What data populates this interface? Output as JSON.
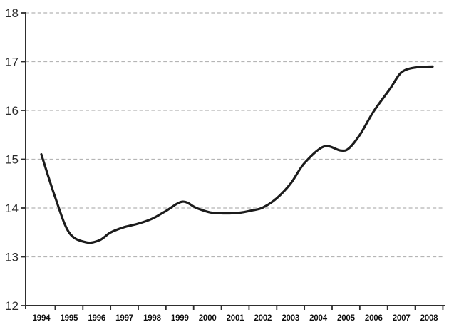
{
  "chart_data": {
    "type": "line",
    "title": "",
    "xlabel": "",
    "ylabel": "",
    "legend_position": "none",
    "grid": "horizontal-dashed",
    "xlim": [
      1993.45,
      2008.6
    ],
    "ylim": [
      12,
      18
    ],
    "x_categories": [
      "1994",
      "1995",
      "1996",
      "1997",
      "1998",
      "1999",
      "2000",
      "2001",
      "2002",
      "2003",
      "2004",
      "2005",
      "2006",
      "2007",
      "2008"
    ],
    "years": [
      1994,
      1995,
      1996,
      1997,
      1998,
      1999,
      2000,
      2001,
      2002,
      2003,
      2004,
      2005,
      2006,
      2007,
      2008
    ],
    "values": [
      15.1,
      13.5,
      13.3,
      13.6,
      13.8,
      14.1,
      13.9,
      13.9,
      14.0,
      14.5,
      15.25,
      15.2,
      16.0,
      16.8,
      16.9
    ],
    "y_tick_values": [
      18,
      17,
      16,
      15,
      14,
      13,
      12
    ],
    "y_tick_labels": [
      "18",
      "17",
      "16",
      "15",
      "14",
      "13",
      "12"
    ],
    "smooth_curve_points": [
      [
        1994.0,
        15.1
      ],
      [
        1994.5,
        14.22
      ],
      [
        1995.0,
        13.5
      ],
      [
        1995.6,
        13.3
      ],
      [
        1996.1,
        13.34
      ],
      [
        1996.5,
        13.5
      ],
      [
        1997.0,
        13.61
      ],
      [
        1997.5,
        13.68
      ],
      [
        1998.0,
        13.78
      ],
      [
        1998.5,
        13.94
      ],
      [
        1999.1,
        14.13
      ],
      [
        1999.6,
        14.0
      ],
      [
        2000.1,
        13.91
      ],
      [
        2000.6,
        13.89
      ],
      [
        2001.1,
        13.9
      ],
      [
        2001.6,
        13.95
      ],
      [
        2002.0,
        14.01
      ],
      [
        2002.5,
        14.2
      ],
      [
        2003.0,
        14.5
      ],
      [
        2003.5,
        14.92
      ],
      [
        2004.2,
        15.26
      ],
      [
        2004.8,
        15.18
      ],
      [
        2005.1,
        15.22
      ],
      [
        2005.5,
        15.5
      ],
      [
        2006.0,
        15.98
      ],
      [
        2006.6,
        16.45
      ],
      [
        2007.0,
        16.78
      ],
      [
        2007.5,
        16.88
      ],
      [
        2008.13,
        16.9
      ]
    ]
  },
  "style": {
    "background": "#ffffff",
    "line_color": "#1c1c1c",
    "grid_color": "#b5b5b5",
    "axis_color": "#2e2e2e",
    "y_label_color": "#2b2b2b",
    "x_label_color": "#0d0d0d"
  }
}
